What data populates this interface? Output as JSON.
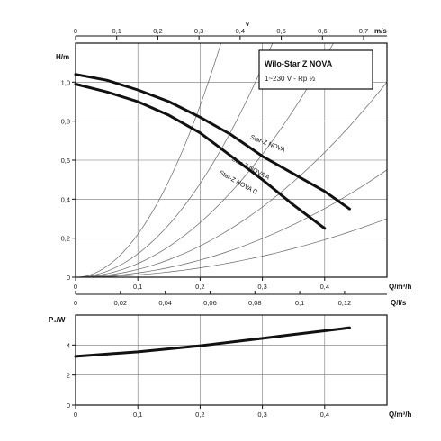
{
  "legend": {
    "title": "Wilo-Star Z NOVA",
    "subtitle": "1~230 V - Rp ½"
  },
  "chart_data": [
    {
      "type": "line",
      "id": "hq",
      "xlabel": "Q/m³/h",
      "ylabel": "H/m",
      "xlim": [
        0,
        0.5
      ],
      "ylim": [
        0,
        1.2
      ],
      "x_ticks": [
        "0",
        "0,1",
        "0,2",
        "0,3",
        "0,4"
      ],
      "y_ticks": [
        "0",
        "0,2",
        "0,4",
        "0,6",
        "0,8",
        "1,0"
      ],
      "top_axis": {
        "label": "v",
        "unit": "m/s",
        "ticks": [
          "0",
          "0,1",
          "0,2",
          "0,3",
          "0,4",
          "0,5",
          "0,6",
          "0,7"
        ]
      },
      "series": [
        {
          "name": "Star-Z NOVA",
          "x": [
            0,
            0.05,
            0.1,
            0.15,
            0.2,
            0.25,
            0.3,
            0.35,
            0.4,
            0.44
          ],
          "y": [
            1.04,
            1.01,
            0.96,
            0.9,
            0.82,
            0.73,
            0.62,
            0.53,
            0.44,
            0.35
          ]
        },
        {
          "name": "Star-Z NOVA A",
          "x": [
            0,
            0.05,
            0.1,
            0.15,
            0.2,
            0.25,
            0.3,
            0.35,
            0.4
          ],
          "y": [
            0.99,
            0.95,
            0.9,
            0.83,
            0.74,
            0.62,
            0.5,
            0.37,
            0.25
          ]
        },
        {
          "name": "Star-Z NOVA C",
          "x": [
            0,
            0.05,
            0.1,
            0.15,
            0.2,
            0.25,
            0.3,
            0.35,
            0.4
          ],
          "y": [
            0.99,
            0.95,
            0.9,
            0.83,
            0.74,
            0.62,
            0.5,
            0.37,
            0.25
          ]
        }
      ],
      "system_curves_k": [
        22,
        12,
        7,
        4,
        2.2,
        1.2
      ]
    },
    {
      "type": "line",
      "id": "ql",
      "xlabel": "Q/l/s",
      "xlim": [
        0,
        0.1389
      ],
      "x_ticks": [
        "0",
        "0,02",
        "0,04",
        "0,06",
        "0,08",
        "0,1",
        "0,12"
      ]
    },
    {
      "type": "line",
      "id": "power",
      "xlabel": "Q/m³/h",
      "ylabel": "P₁/W",
      "xlim": [
        0,
        0.5
      ],
      "ylim": [
        0,
        6
      ],
      "x_ticks": [
        "0",
        "0,1",
        "0,2",
        "0,3",
        "0,4"
      ],
      "y_ticks": [
        "0",
        "2",
        "4"
      ],
      "series": [
        {
          "x": [
            0,
            0.05,
            0.1,
            0.15,
            0.2,
            0.25,
            0.3,
            0.35,
            0.4,
            0.44
          ],
          "y": [
            3.25,
            3.4,
            3.55,
            3.75,
            3.95,
            4.2,
            4.45,
            4.7,
            4.95,
            5.15
          ]
        }
      ]
    }
  ]
}
